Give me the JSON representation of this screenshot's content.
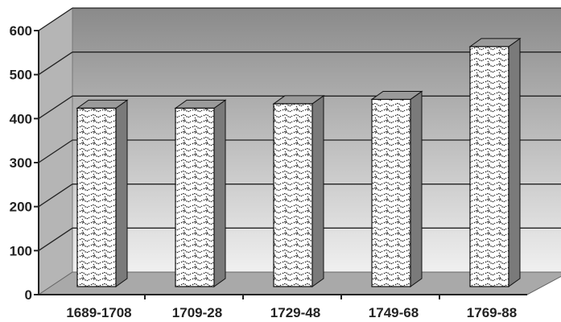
{
  "chart_data": {
    "type": "bar",
    "categories": [
      "1689-1708",
      "1709-28",
      "1729-48",
      "1749-68",
      "1769-88"
    ],
    "values": [
      420,
      420,
      430,
      440,
      560
    ],
    "title": "",
    "xlabel": "",
    "ylabel": "",
    "ylim": [
      0,
      600
    ],
    "yticks": [
      0,
      100,
      200,
      300,
      400,
      500,
      600
    ],
    "grid": true,
    "legend": "none",
    "style": "3d",
    "colors": {
      "wall_top": "#8a8a8a",
      "wall_bottom": "#f0f0f0",
      "floor": "#a9a9a9",
      "grid": "#222222",
      "bar_front": "#ffffff",
      "bar_pattern": "#1a1a1a",
      "bar_side": "#7a7a7a",
      "bar_top": "#9a9a9a"
    }
  }
}
